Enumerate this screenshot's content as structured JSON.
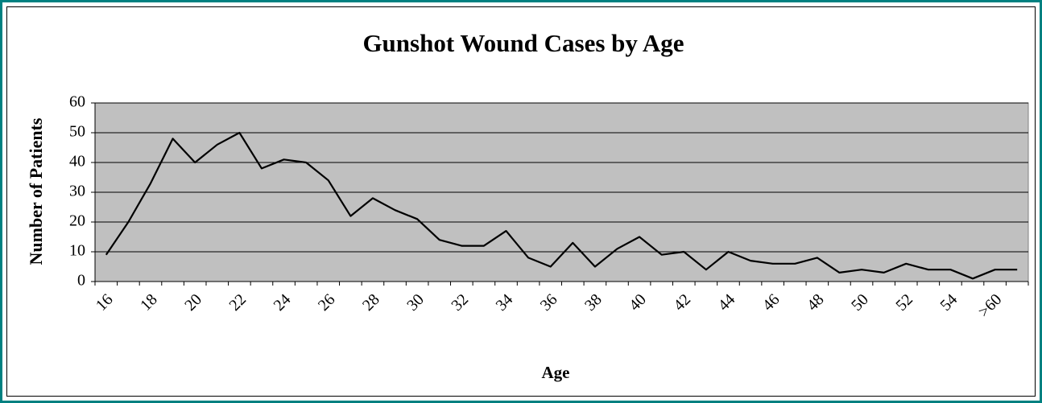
{
  "chart_data": {
    "type": "line",
    "title": "Gunshot Wound Cases by Age",
    "x_label": "Age",
    "y_label": "Number of Patients",
    "categories": [
      "16",
      null,
      "18",
      null,
      "20",
      null,
      "22",
      null,
      "24",
      null,
      "26",
      null,
      "28",
      null,
      "30",
      null,
      "32",
      null,
      "34",
      null,
      "36",
      null,
      "38",
      null,
      "40",
      null,
      "42",
      null,
      "44",
      null,
      "46",
      null,
      "48",
      null,
      "50",
      null,
      "52",
      null,
      "54",
      null,
      ">60",
      null
    ],
    "series": [
      {
        "color": "#000000",
        "values": [
          9,
          20,
          33,
          48,
          40,
          46,
          50,
          38,
          41,
          40,
          34,
          22,
          28,
          24,
          21,
          14,
          12,
          12,
          17,
          8,
          5,
          13,
          5,
          11,
          15,
          9,
          10,
          4,
          10,
          7,
          6,
          6,
          8,
          3,
          4,
          3,
          6,
          4,
          4,
          1,
          4,
          4
        ]
      }
    ],
    "ylim": [
      0,
      60
    ],
    "yticks": [
      0,
      10,
      20,
      30,
      40,
      50,
      60
    ],
    "grid": true,
    "plot_background": "#c0c0c0"
  }
}
